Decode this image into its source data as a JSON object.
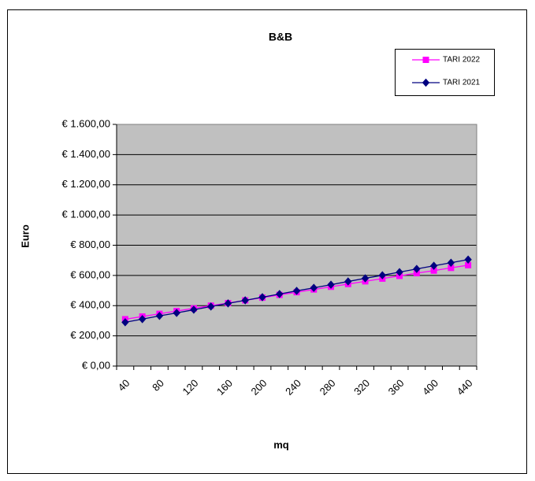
{
  "chart_data": {
    "type": "line",
    "title": "B&B",
    "x_label": "mq",
    "y_label": "Euro",
    "categories": [
      40,
      null,
      80,
      null,
      120,
      null,
      160,
      null,
      200,
      null,
      240,
      null,
      280,
      null,
      320,
      null,
      360,
      null,
      400,
      null,
      440
    ],
    "series": [
      {
        "name": "TARI 2022",
        "color": "#ff00ff",
        "marker": "square",
        "values": [
          310,
          328,
          346,
          364,
          382,
          400,
          417,
          435,
          453,
          471,
          489,
          507,
          525,
          543,
          561,
          579,
          597,
          615,
          632,
          650,
          668
        ]
      },
      {
        "name": "TARI 2021",
        "color": "#000080",
        "marker": "diamond",
        "values": [
          290,
          311,
          332,
          352,
          373,
          394,
          415,
          435,
          456,
          477,
          498,
          518,
          539,
          560,
          581,
          601,
          622,
          643,
          664,
          684,
          705
        ]
      }
    ],
    "ylim": [
      0,
      1600
    ],
    "yticks": [
      {
        "value": 0,
        "label": "€ 0,00"
      },
      {
        "value": 200,
        "label": "€ 200,00"
      },
      {
        "value": 400,
        "label": "€ 400,00"
      },
      {
        "value": 600,
        "label": "€ 600,00"
      },
      {
        "value": 800,
        "label": "€ 800,00"
      },
      {
        "value": 1000,
        "label": "€ 1.000,00"
      },
      {
        "value": 1200,
        "label": "€ 1.200,00"
      },
      {
        "value": 1400,
        "label": "€ 1.400,00"
      },
      {
        "value": 1600,
        "label": "€ 1.600,00"
      }
    ],
    "grid": true,
    "plot_background": "#c0c0c0",
    "legend_position": "top-right"
  }
}
